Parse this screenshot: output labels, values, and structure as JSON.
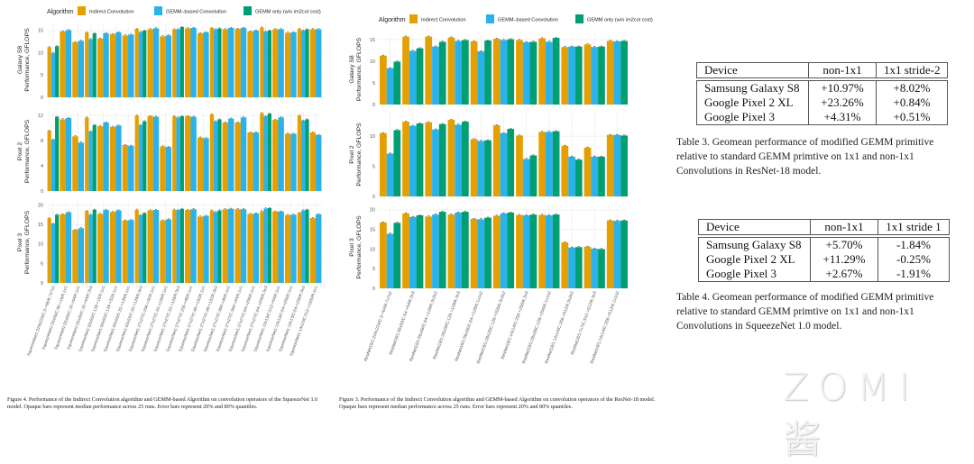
{
  "legend": {
    "title": "Algorithm",
    "items": [
      "Indirect Convolution",
      "GEMM–based Convolution",
      "GEMM only (w/o im2col cost)"
    ]
  },
  "colors": {
    "indirect": "#E69F00",
    "gemm": "#2BB2EA",
    "gemm_only": "#009E73"
  },
  "chart_data": [
    {
      "type": "bar",
      "figure": "squeezenet",
      "categories": [
        "SqueezeNet1:224x224/C:3->96/K:7x7s2",
        "SqueezeNet1:55x55/C:96->16/K:1x1",
        "SqueezeNet1:55x55/C:16->64/K:1x1",
        "SqueezeNet1:55x55/C:16->64/K:3x3",
        "SqueezeNet1:55x55/C:128->16/K:1x1",
        "SqueezeNet1:55x55/C:128->32/K:1x1",
        "SqueezeNet1:55x55/C:32->128/K:1x1",
        "SqueezeNet1:55x55/C:32->128/K:3x3",
        "SqueezeNet1:27x27/C:256->32/K:1x1",
        "SqueezeNet1:27x27/C:32->128/K:1x1",
        "SqueezeNet1:27x27/C:32->128/K:3x3",
        "SqueezeNet1:27x27/C:256->48/K:1x1",
        "SqueezeNet1:27x27/C:48->192/K:1x1",
        "SqueezeNet1:27x27/C:48->192/K:3x3",
        "SqueezeNet1:27x27/C:384->48/K:1x1",
        "SqueezeNet1:27x27/C:384->64/K:1x1",
        "SqueezeNet1:27x27/C:64->256/K:1x1",
        "SqueezeNet1:27x27/C:64->256/K:3x3",
        "SqueezeNet1:13x13/C:512->64/K:1x1",
        "SqueezeNet1:13x13/C:64->256/K:1x1",
        "SqueezeNet1:13x13/C:64->256/K:3x3",
        "SqueezeNet1:13x13/C:512->1000/K:1x1"
      ],
      "panels": [
        {
          "name": "Galaxy S8",
          "ylabel": "Performance, GFLOPS",
          "ylim": [
            0,
            16.8
          ],
          "yticks": [
            0,
            5,
            10,
            15
          ],
          "series": [
            {
              "name": "Indirect Convolution",
              "values": [
                11.3,
                14.8,
                12.4,
                14.6,
                13.2,
                14.2,
                13.9,
                15.4,
                15.3,
                13.7,
                15.3,
                15.5,
                14.4,
                15.6,
                15.3,
                15.4,
                14.8,
                15.7,
                15.3,
                14.5,
                15.4,
                15.3
              ]
            },
            {
              "name": "GEMM-based Convolution",
              "values": [
                10.0,
                15.1,
                12.7,
                13.1,
                14.4,
                14.6,
                14.1,
                14.7,
                15.5,
                13.9,
                15.3,
                15.6,
                14.6,
                15.3,
                15.6,
                15.6,
                15.0,
                14.8,
                15.3,
                14.6,
                15.0,
                15.3
              ]
            },
            {
              "name": "GEMM only (w/o im2col cost)",
              "values": [
                11.5,
                null,
                null,
                14.4,
                null,
                null,
                null,
                15.0,
                null,
                null,
                15.8,
                null,
                null,
                15.5,
                null,
                null,
                null,
                15.0,
                null,
                null,
                15.3,
                null
              ]
            }
          ]
        },
        {
          "name": "Pixel 2",
          "ylabel": "Performance, GFLOPS",
          "ylim": [
            0,
            12.6
          ],
          "yticks": [
            0,
            4,
            8,
            12
          ],
          "series": [
            {
              "name": "Indirect Convolution",
              "values": [
                9.6,
                11.4,
                8.7,
                11.7,
                10.3,
                10.2,
                7.3,
                12.0,
                11.9,
                7.1,
                11.9,
                11.9,
                8.5,
                12.2,
                10.9,
                10.9,
                9.3,
                12.4,
                11.3,
                9.1,
                12.0,
                9.3
              ]
            },
            {
              "name": "GEMM-based Convolution",
              "values": [
                8.2,
                11.6,
                7.7,
                9.5,
                10.9,
                10.4,
                7.2,
                10.5,
                11.8,
                7.0,
                11.7,
                11.8,
                8.4,
                11.1,
                11.5,
                11.7,
                9.3,
                11.9,
                11.7,
                9.1,
                11.2,
                8.9
              ]
            },
            {
              "name": "GEMM only (w/o im2col cost)",
              "values": [
                11.8,
                null,
                null,
                10.5,
                null,
                null,
                null,
                11.1,
                null,
                null,
                11.9,
                null,
                null,
                11.4,
                null,
                null,
                null,
                12.3,
                null,
                null,
                11.4,
                null
              ]
            }
          ]
        },
        {
          "name": "Pixel 3",
          "ylabel": "Performance, GFLOPS",
          "ylim": [
            0,
            20.9
          ],
          "yticks": [
            0,
            5,
            10,
            15,
            20
          ],
          "series": [
            {
              "name": "Indirect Convolution",
              "values": [
                16.7,
                17.7,
                13.7,
                18.6,
                17.8,
                18.3,
                16.1,
                18.9,
                18.7,
                16.1,
                18.9,
                18.8,
                17.1,
                18.7,
                19.0,
                19.0,
                17.8,
                18.5,
                18.4,
                17.5,
                18.1,
                16.7
              ]
            },
            {
              "name": "GEMM-based Convolution",
              "values": [
                15.3,
                18.2,
                14.1,
                17.6,
                18.8,
                18.7,
                16.2,
                17.5,
                18.8,
                16.4,
                18.8,
                19.0,
                17.3,
                18.3,
                19.1,
                19.0,
                17.9,
                19.2,
                18.4,
                17.6,
                18.7,
                17.7
              ]
            },
            {
              "name": "GEMM only (w/o im2col cost)",
              "values": [
                17.6,
                null,
                null,
                18.9,
                null,
                null,
                null,
                18.0,
                null,
                null,
                19.1,
                null,
                null,
                18.7,
                null,
                null,
                null,
                19.3,
                null,
                null,
                18.9,
                null
              ]
            }
          ]
        }
      ],
      "caption": "Figure 4. Performance of the Indirect Convolution algorithm and GEMM-based Algorithm on convolution operators of the SqueezeNet 1.0 model. Opaque bars represent median performance across 25 runs. Error bars represent 20% and 80% quantiles."
    },
    {
      "type": "bar",
      "figure": "resnet18",
      "categories": [
        "ResNet18/1:224x224/C:3->64/K:7x7s2",
        "ResNet18/1:56x56/C:64->64/K:3x3",
        "ResNet18/1:56x56/C:64->128/K:3x3s2",
        "ResNet18/1:28x28/C:128->128/K:3x3",
        "ResNet18/1:56x56/C:64->128/K:1x1s2",
        "ResNet18/1:28x28/C:128->256/K:3x3s2",
        "ResNet18/1:14x14/C:256->256/K:3x3",
        "ResNet18/1:28x28/C:128->256/K:1x1s2",
        "ResNet18/1:14x14/C:256->512/K:3x3s2",
        "ResNet18/1:7x7/C:512->512/K:3x3",
        "ResNet18/1:14x14/C:256->512/K:1x1s2"
      ],
      "panels": [
        {
          "name": "Galaxy S8",
          "ylabel": "Performance, GFLOPS",
          "ylim": [
            0,
            16.25
          ],
          "yticks": [
            0,
            5,
            10,
            15
          ],
          "series": [
            {
              "name": "Indirect Convolution",
              "values": [
                11.3,
                15.7,
                15.7,
                15.5,
                14.6,
                15.2,
                14.9,
                15.3,
                13.3,
                13.9,
                14.7
              ]
            },
            {
              "name": "GEMM-based Convolution",
              "values": [
                8.4,
                12.4,
                13.4,
                14.7,
                12.3,
                14.9,
                14.4,
                14.5,
                13.4,
                13.3,
                14.6
              ]
            },
            {
              "name": "GEMM only (w/o im2col cost)",
              "values": [
                9.9,
                13.0,
                14.5,
                14.9,
                14.8,
                15.1,
                14.5,
                15.4,
                13.4,
                13.4,
                14.7
              ]
            }
          ]
        },
        {
          "name": "Pixel 2",
          "ylabel": "Performance, GFLOPS",
          "ylim": [
            0,
            13.9
          ],
          "yticks": [
            0,
            5,
            10
          ],
          "series": [
            {
              "name": "Indirect Convolution",
              "values": [
                10.5,
                12.4,
                12.3,
                12.7,
                9.5,
                11.8,
                10.1,
                10.7,
                8.4,
                8.1,
                10.2
              ]
            },
            {
              "name": "GEMM-based Convolution",
              "values": [
                7.1,
                11.7,
                11.1,
                11.9,
                9.2,
                10.5,
                6.2,
                10.7,
                6.6,
                6.6,
                10.2
              ]
            },
            {
              "name": "GEMM only (w/o im2col cost)",
              "values": [
                11.0,
                12.1,
                12.0,
                12.4,
                9.3,
                11.2,
                6.8,
                10.8,
                6.1,
                6.6,
                10.1
              ]
            }
          ]
        },
        {
          "name": "Pixel 3",
          "ylabel": "Performance, GFLOPS",
          "ylim": [
            0,
            20.9
          ],
          "yticks": [
            0,
            5,
            10,
            15,
            20
          ],
          "series": [
            {
              "name": "Indirect Convolution",
              "values": [
                16.8,
                19.1,
                18.3,
                18.8,
                17.7,
                18.5,
                18.7,
                18.7,
                11.7,
                10.6,
                17.3
              ]
            },
            {
              "name": "GEMM-based Convolution",
              "values": [
                13.9,
                18.2,
                18.8,
                19.3,
                17.6,
                19.1,
                18.6,
                18.6,
                10.4,
                10.1,
                17.2
              ]
            },
            {
              "name": "GEMM only (w/o im2col cost)",
              "values": [
                16.7,
                18.6,
                19.5,
                19.5,
                18.0,
                19.3,
                18.8,
                18.8,
                10.5,
                10.0,
                17.3
              ]
            }
          ]
        }
      ],
      "caption": "Figure 3. Performance of the Indirect Convolution algorithm and GEMM-based Algorithm on convolution operators of the ResNet-18 model. Opaque bars represent median performance across 25 runs. Error bars represent 20% and 80% quantiles."
    }
  ],
  "table3": {
    "headers": [
      "Device",
      "non-1x1",
      "1x1 stride-2"
    ],
    "rows": [
      [
        "Samsung Galaxy S8",
        "+10.97%",
        "+8.02%"
      ],
      [
        "Google Pixel 2 XL",
        "+23.26%",
        "+0.84%"
      ],
      [
        "Google Pixel 3",
        "+4.31%",
        "+0.51%"
      ]
    ],
    "caption": "Table 3. Geomean performance of modified GEMM primitive relative to standard GEMM primtive on 1x1 and non-1x1 Convolutions in ResNet-18 model."
  },
  "table4": {
    "headers": [
      "Device",
      "non-1x1",
      "1x1 stride 1"
    ],
    "rows": [
      [
        "Samsung Galaxy S8",
        "+5.70%",
        "-1.84%"
      ],
      [
        "Google Pixel 2 XL",
        "+11.29%",
        "-0.25%"
      ],
      [
        "Google Pixel 3",
        "+2.67%",
        "-1.91%"
      ]
    ],
    "caption": "Table 4. Geomean performance of modified GEMM primitive relative to standard GEMM primtive on 1x1 and non-1x1 Convolutions in SqueezeNet 1.0 model."
  },
  "watermark": "ZOMI 酱"
}
